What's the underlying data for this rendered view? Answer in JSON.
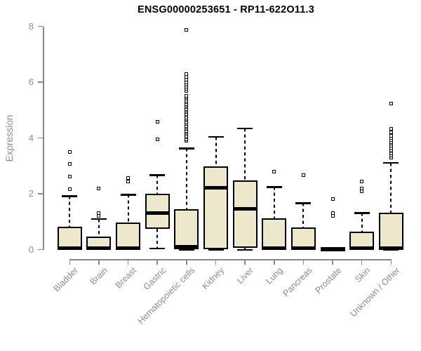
{
  "chart_data": {
    "type": "boxplot",
    "title": "ENSG00000253651 - RP11-622O11.3",
    "xlabel": "",
    "ylabel": "Expression",
    "ylim": [
      0,
      8
    ],
    "yticks": [
      0,
      2,
      4,
      6,
      8
    ],
    "grid": false,
    "legend": "none",
    "categories": [
      "Bladder",
      "Brain",
      "Breast",
      "Gastric",
      "Hematopoietic cells",
      "Kidney",
      "Liver",
      "Lung",
      "Pancreas",
      "Prostate",
      "Skin",
      "Unknown / Other"
    ],
    "boxes": [
      {
        "label": "Bladder",
        "whisker_low": 0,
        "q1": 0,
        "median": 0.05,
        "q3": 0.82,
        "whisker_high": 1.92,
        "outliers": [
          2.17,
          2.61,
          3.07,
          3.49
        ]
      },
      {
        "label": "Brain",
        "whisker_low": 0,
        "q1": 0,
        "median": 0.04,
        "q3": 0.47,
        "whisker_high": 1.1,
        "outliers": [
          1.21,
          1.31,
          2.18
        ]
      },
      {
        "label": "Breast",
        "whisker_low": 0,
        "q1": 0,
        "median": 0.05,
        "q3": 0.97,
        "whisker_high": 1.97,
        "outliers": [
          2.43,
          2.56
        ]
      },
      {
        "label": "Gastric",
        "whisker_low": 0.05,
        "q1": 0.74,
        "median": 1.32,
        "q3": 2.01,
        "whisker_high": 2.67,
        "outliers": [
          3.95,
          4.58
        ]
      },
      {
        "label": "Hematopoietic cells",
        "whisker_low": 0,
        "q1": 0.02,
        "median": 0.1,
        "q3": 1.45,
        "whisker_high": 3.63,
        "outliers": [
          3.9,
          3.96,
          4.02,
          4.08,
          4.14,
          4.2,
          4.26,
          4.32,
          4.38,
          4.44,
          4.5,
          4.56,
          4.62,
          4.68,
          4.74,
          4.8,
          4.86,
          4.92,
          4.98,
          5.04,
          5.1,
          5.16,
          5.22,
          5.28,
          5.34,
          5.4,
          5.46,
          5.52,
          5.68,
          5.76,
          5.84,
          5.92,
          6.0,
          6.08,
          6.18,
          6.28,
          7.87
        ]
      },
      {
        "label": "Kidney",
        "whisker_low": 0,
        "q1": 0.02,
        "median": 2.21,
        "q3": 2.98,
        "whisker_high": 4.04,
        "outliers": []
      },
      {
        "label": "Liver",
        "whisker_low": 0,
        "q1": 0.06,
        "median": 1.46,
        "q3": 2.49,
        "whisker_high": 4.35,
        "outliers": []
      },
      {
        "label": "Lung",
        "whisker_low": 0,
        "q1": 0,
        "median": 0.05,
        "q3": 1.13,
        "whisker_high": 2.24,
        "outliers": [
          2.8
        ]
      },
      {
        "label": "Pancreas",
        "whisker_low": 0,
        "q1": 0,
        "median": 0.04,
        "q3": 0.8,
        "whisker_high": 1.67,
        "outliers": [
          2.67
        ]
      },
      {
        "label": "Prostate",
        "whisker_low": 0,
        "q1": 0,
        "median": 0.02,
        "q3": 0.05,
        "whisker_high": 0.05,
        "outliers": [
          1.22,
          1.3,
          1.82
        ]
      },
      {
        "label": "Skin",
        "whisker_low": 0,
        "q1": 0,
        "median": 0.04,
        "q3": 0.65,
        "whisker_high": 1.31,
        "outliers": [
          2.08,
          2.19,
          2.45
        ]
      },
      {
        "label": "Unknown / Other",
        "whisker_low": 0,
        "q1": 0.02,
        "median": 0.06,
        "q3": 1.33,
        "whisker_high": 3.11,
        "outliers": [
          3.3,
          3.37,
          3.44,
          3.51,
          3.58,
          3.65,
          3.72,
          3.79,
          3.86,
          3.93,
          4.0,
          4.08,
          4.2,
          4.33,
          5.24
        ]
      }
    ],
    "style": {
      "box_fill": "#EDE7CB",
      "box_stroke": "#000000",
      "median_color": "#000000",
      "whisker_color": "#000000",
      "outlier_shape": "open-square",
      "outlier_fill": "#ffffff",
      "axis_color": "#888888",
      "tick_label_color": "#8c8c8c",
      "title_color": "#000000",
      "background": "#ffffff"
    }
  }
}
